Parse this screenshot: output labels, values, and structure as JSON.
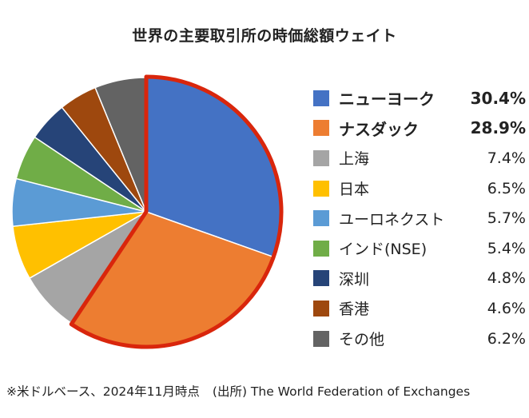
{
  "chart_data": {
    "type": "pie",
    "title": "世界の主要取引所の時価総額ウェイト",
    "unit": "%",
    "slices": [
      {
        "label": "ニューヨーク",
        "value": 30.4,
        "display": "30.4%",
        "color": "#4472C4",
        "highlight": true
      },
      {
        "label": "ナスダック",
        "value": 28.9,
        "display": "28.9%",
        "color": "#ED7D31",
        "highlight": true
      },
      {
        "label": "上海",
        "value": 7.4,
        "display": "7.4%",
        "color": "#A5A5A5",
        "highlight": false
      },
      {
        "label": "日本",
        "value": 6.5,
        "display": "6.5%",
        "color": "#FFC000",
        "highlight": false
      },
      {
        "label": "ユーロネクスト",
        "value": 5.7,
        "display": "5.7%",
        "color": "#5B9BD5",
        "highlight": false
      },
      {
        "label": "インド(NSE)",
        "value": 5.4,
        "display": "5.4%",
        "color": "#70AD47",
        "highlight": false
      },
      {
        "label": "深圳",
        "value": 4.8,
        "display": "4.8%",
        "color": "#264478",
        "highlight": false
      },
      {
        "label": "香港",
        "value": 4.6,
        "display": "4.6%",
        "color": "#9E480E",
        "highlight": false
      },
      {
        "label": "その他",
        "value": 6.2,
        "display": "6.2%",
        "color": "#636363",
        "highlight": false
      }
    ],
    "highlight_outline_color": "#D9260C",
    "legend_position": "right"
  },
  "footer": {
    "note": "※米ドルベース、2024年11月時点",
    "source": "(出所) The World Federation of Exchanges"
  }
}
